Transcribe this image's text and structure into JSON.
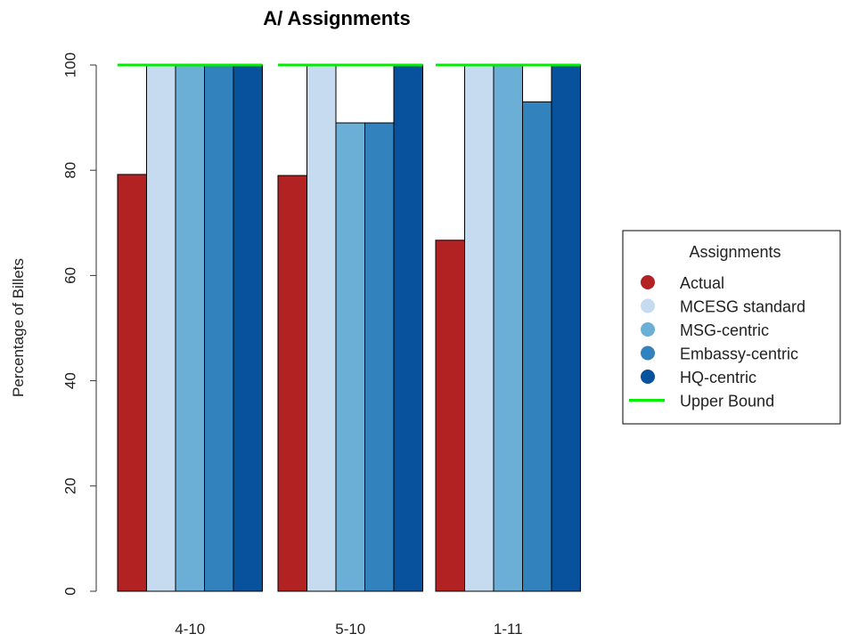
{
  "chart_data": {
    "type": "bar",
    "title": "A/ Assignments",
    "xlabel": "",
    "ylabel": "Percentage of Billets",
    "ylim": [
      0,
      100
    ],
    "yticks": [
      0,
      20,
      40,
      60,
      80,
      100
    ],
    "categories": [
      "4-10",
      "5-10",
      "1-11"
    ],
    "series": [
      {
        "name": "Actual",
        "color": "#b22222",
        "values": [
          79.2,
          79.0,
          66.7
        ]
      },
      {
        "name": "MCESG standard",
        "color": "#c6dbef",
        "values": [
          100,
          100,
          100
        ]
      },
      {
        "name": "MSG-centric",
        "color": "#6baed6",
        "values": [
          100,
          89,
          100
        ]
      },
      {
        "name": "Embassy-centric",
        "color": "#3182bd",
        "values": [
          100,
          89,
          93
        ]
      },
      {
        "name": "HQ-centric",
        "color": "#08519c",
        "values": [
          100,
          100,
          100
        ]
      }
    ],
    "upper_bound": {
      "name": "Upper Bound",
      "value": 100,
      "color": "#00ee00"
    },
    "legend": {
      "title": "Assignments",
      "position": "right"
    },
    "grid": false
  }
}
